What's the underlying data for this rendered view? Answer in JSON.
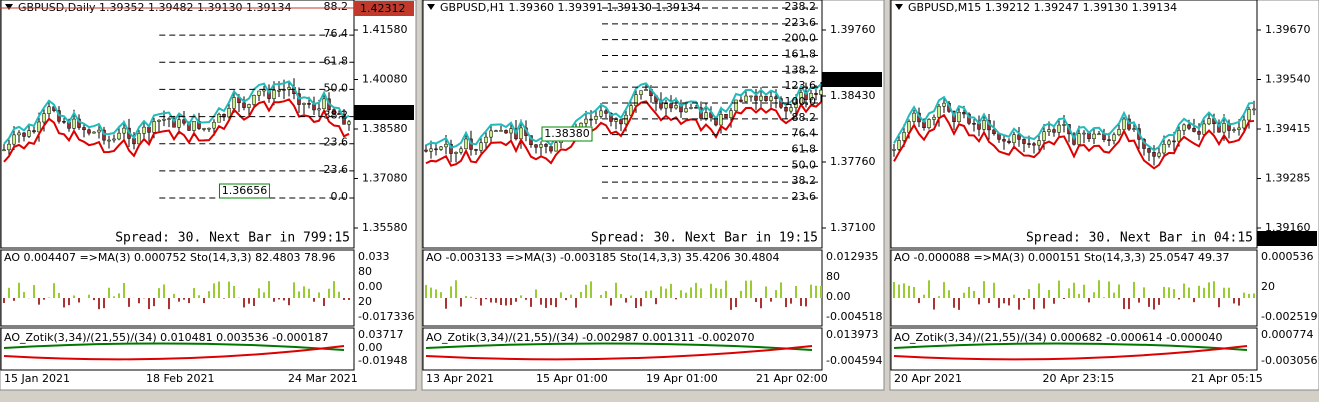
{
  "panels": [
    {
      "header": "GBPUSD,Daily  1.39352 1.39482 1.39130 1.39134",
      "top_price": "1.42312",
      "prices": [
        "1.41580",
        "1.40080",
        "1.38580",
        "1.37080",
        "1.35580"
      ],
      "current_price": "1.39134",
      "fib_levels": [
        "88.2",
        "76.4",
        "61.8",
        "50.0",
        "38.2",
        "23.6",
        "23.6",
        "0.0"
      ],
      "box_label": "1.36656",
      "spread": "Spread: 30. Next Bar in 799:15",
      "ao": "AO 0.004407 =>MA(3) 0.000752 Sto(14,3,3) 82.4803 78.96",
      "ao_axis": [
        "0.033",
        "80",
        "0.00",
        "20",
        "-0.017336"
      ],
      "zotik": "AO_Zotik(3,34)/(21,55)/(34) 0.010481 0.003536 -0.000187",
      "zotik_axis": [
        "0.03717",
        "0.00",
        "-0.01948"
      ],
      "dates": [
        "15 Jan 2021",
        "18 Feb 2021",
        "24 Mar 2021"
      ]
    },
    {
      "header": "GBPUSD,H1  1.39360 1.39391 1.39130 1.39134",
      "prices": [
        "1.39760",
        "1.38430",
        "1.37760",
        "1.37100"
      ],
      "current_price": "1.39134",
      "fib_levels": [
        "238.2",
        "223.6",
        "200.0",
        "161.8",
        "138.2",
        "123.6",
        "100.0",
        "88.2",
        "76.4",
        "61.8",
        "50.0",
        "38.2",
        "23.6"
      ],
      "box_label": "1.38380",
      "spread": "Spread: 30. Next Bar in 19:15",
      "ao": "AO -0.003133 =>MA(3) -0.003185 Sto(14,3,3) 35.4206 30.4804",
      "ao_axis": [
        "0.012935",
        "80",
        "0.00",
        "-0.004518"
      ],
      "zotik": "AO_Zotik(3,34)/(21,55)/(34) -0.002987 0.001311 -0.002070",
      "zotik_axis": [
        "0.013973",
        "-0.004594"
      ],
      "dates": [
        "13 Apr 2021",
        "15 Apr 01:00",
        "19 Apr 01:00",
        "21 Apr 02:00"
      ]
    },
    {
      "header": "GBPUSD,M15  1.39212 1.39247 1.39130 1.39134",
      "prices": [
        "1.39670",
        "1.39540",
        "1.39415",
        "1.39285",
        "1.39160"
      ],
      "current_price": "1.39134",
      "spread": "Spread: 30. Next Bar in 04:15",
      "ao": "AO -0.000088 =>MA(3) 0.000151 Sto(14,3,3) 25.0547 49.37",
      "ao_axis": [
        "0.000536",
        "20",
        "-0.002519"
      ],
      "zotik": "AO_Zotik(3,34)/(21,55)/(34) 0.000682 -0.000614 -0.000040",
      "zotik_axis": [
        "0.000774",
        "-0.003056"
      ],
      "dates": [
        "20 Apr 2021",
        "20 Apr 23:15",
        "21 Apr 05:15"
      ]
    }
  ]
}
